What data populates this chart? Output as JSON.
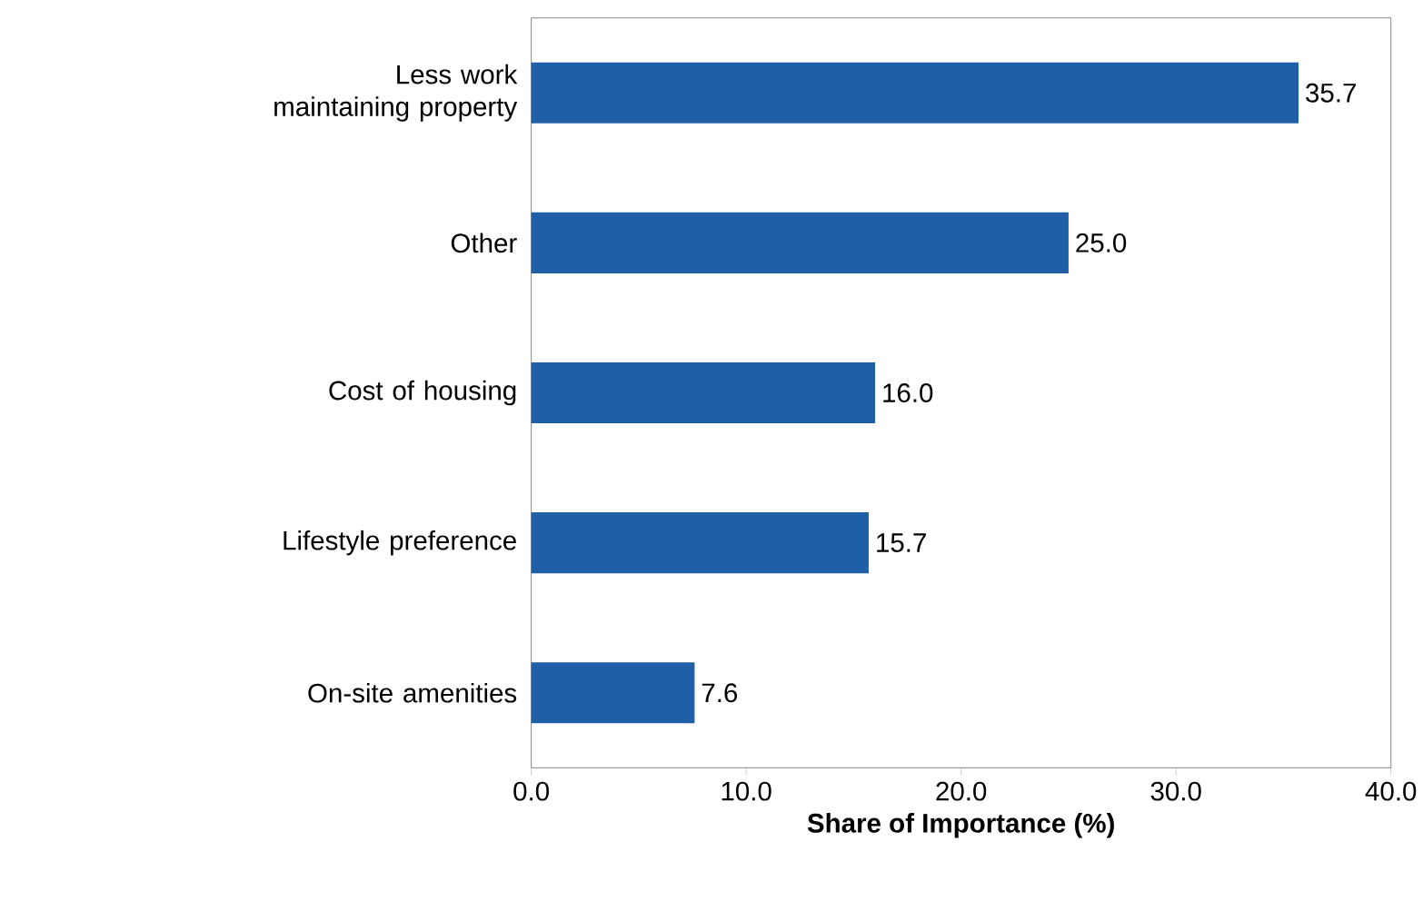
{
  "chart_data": {
    "type": "bar",
    "orientation": "horizontal",
    "xlabel": "Share of Importance (%)",
    "categories": [
      "Less work maintaining property",
      "Other",
      "Cost of housing",
      "Lifestyle preference",
      "On-site amenities"
    ],
    "values": [
      35.7,
      25.0,
      16.0,
      15.7,
      7.6
    ],
    "value_labels": [
      "35.7",
      "25.0",
      "16.0",
      "15.7",
      "7.6"
    ],
    "color": "#1f5fa8",
    "xlim": [
      0,
      40
    ],
    "xticks": [
      {
        "value": 0,
        "label": "0.0"
      },
      {
        "value": 10,
        "label": "10.0"
      },
      {
        "value": 20,
        "label": "20.0"
      },
      {
        "value": 30,
        "label": "30.0"
      },
      {
        "value": 40,
        "label": "40.0"
      }
    ],
    "grid": false
  }
}
